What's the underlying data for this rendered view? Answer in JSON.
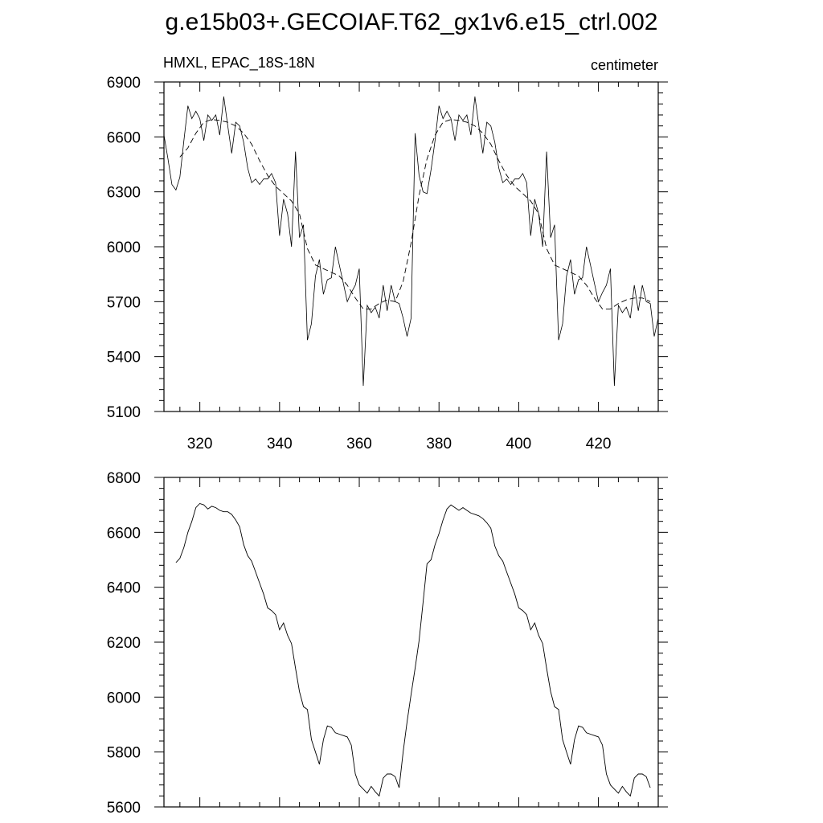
{
  "title": "g.e15b03+.GECOIAF.T62_gx1v6.e15_ctrl.002",
  "chart_data": [
    {
      "type": "line",
      "left_label": "HMXL, EPAC_18S-18N",
      "right_label": "centimeter",
      "xlim": [
        311,
        435
      ],
      "ylim": [
        5100,
        6900
      ],
      "xticks": [
        320,
        340,
        360,
        380,
        400,
        420
      ],
      "yticks": [
        5100,
        5400,
        5700,
        6000,
        6300,
        6600,
        6900
      ],
      "xtick_labels": [
        "320",
        "340",
        "360",
        "380",
        "400",
        "420"
      ],
      "ytick_labels": [
        "5100",
        "5400",
        "5700",
        "6000",
        "6300",
        "6600",
        "6900"
      ],
      "series": [
        {
          "style": "solid",
          "x": [
            311,
            312,
            313,
            314,
            315,
            316,
            317,
            318,
            319,
            320,
            321,
            322,
            323,
            324,
            325,
            326,
            327,
            328,
            329,
            330,
            331,
            332,
            333,
            334,
            335,
            336,
            337,
            338,
            339,
            340,
            341,
            342,
            343,
            344,
            345,
            346,
            347,
            348,
            349,
            350,
            351,
            352,
            353,
            354,
            355,
            356,
            357,
            358,
            359,
            360,
            361,
            362,
            363,
            364,
            365,
            366,
            367,
            368,
            369,
            370,
            371,
            372,
            373,
            374,
            375,
            376,
            377,
            378,
            379,
            380,
            381,
            382,
            383,
            384,
            385,
            386,
            387,
            388,
            389,
            390,
            391,
            392,
            393,
            394,
            395,
            396,
            397,
            398,
            399,
            400,
            401,
            402,
            403,
            404,
            405,
            406,
            407,
            408,
            409,
            410,
            411,
            412,
            413,
            414,
            415,
            416,
            417,
            418,
            419,
            420,
            421,
            422,
            423,
            424,
            425,
            426,
            427,
            428,
            429,
            430,
            431,
            432,
            433,
            434,
            435
          ],
          "y": [
            6610,
            6480,
            6340,
            6310,
            6380,
            6580,
            6770,
            6700,
            6740,
            6700,
            6580,
            6720,
            6690,
            6720,
            6610,
            6820,
            6660,
            6510,
            6680,
            6660,
            6570,
            6430,
            6350,
            6370,
            6340,
            6370,
            6370,
            6400,
            6350,
            6060,
            6260,
            6180,
            6000,
            6520,
            6050,
            6120,
            5490,
            5580,
            5840,
            5930,
            5740,
            5820,
            5830,
            6000,
            5900,
            5800,
            5700,
            5750,
            5790,
            5880,
            5240,
            5680,
            5640,
            5670,
            5610,
            5790,
            5650,
            5790,
            5700,
            5690,
            5610,
            5510,
            5610,
            6620,
            6390,
            6300,
            6290,
            6420,
            6580,
            6770,
            6700,
            6740,
            6700,
            6580,
            6720,
            6690,
            6720,
            6610,
            6820,
            6660,
            6510,
            6680,
            6660,
            6570,
            6430,
            6350,
            6370,
            6340,
            6370,
            6370,
            6400,
            6350,
            6060,
            6260,
            6180,
            6000,
            6520,
            6050,
            6120,
            5490,
            5580,
            5840,
            5930,
            5740,
            5820,
            5830,
            6000,
            5900,
            5800,
            5700,
            5750,
            5790,
            5880,
            5240,
            5680,
            5640,
            5670,
            5610,
            5790,
            5650,
            5790,
            5700,
            5690,
            5510,
            5610
          ]
        },
        {
          "style": "dashed",
          "x": [
            315,
            317,
            319,
            321,
            323,
            325,
            327,
            329,
            331,
            333,
            335,
            337,
            339,
            341,
            343,
            345,
            347,
            349,
            351,
            353,
            355,
            357,
            359,
            361,
            363,
            365,
            367,
            369,
            371,
            373,
            375,
            377,
            379,
            381,
            383,
            385,
            387,
            389,
            391,
            393,
            395,
            397,
            399,
            401,
            403,
            405,
            407,
            409,
            411,
            413,
            415,
            417,
            419,
            421,
            423,
            425,
            427,
            429,
            431,
            433
          ],
          "y": [
            6490,
            6540,
            6620,
            6680,
            6695,
            6690,
            6680,
            6660,
            6620,
            6560,
            6470,
            6390,
            6330,
            6290,
            6250,
            6180,
            5990,
            5900,
            5880,
            5860,
            5840,
            5790,
            5720,
            5660,
            5660,
            5690,
            5710,
            5700,
            5810,
            6020,
            6280,
            6480,
            6610,
            6680,
            6695,
            6690,
            6680,
            6660,
            6620,
            6560,
            6470,
            6390,
            6330,
            6290,
            6250,
            6180,
            5990,
            5900,
            5880,
            5860,
            5840,
            5790,
            5720,
            5660,
            5660,
            5690,
            5710,
            5720,
            5720,
            5700
          ]
        }
      ]
    },
    {
      "type": "line",
      "xlim": [
        311,
        435
      ],
      "ylim": [
        5600,
        6800
      ],
      "xticks": [
        320,
        340,
        360,
        380,
        400,
        420
      ],
      "yticks": [
        5600,
        5800,
        6000,
        6200,
        6400,
        6600,
        6800
      ],
      "ytick_labels": [
        "5600",
        "5800",
        "6000",
        "6200",
        "6400",
        "6600",
        "6800"
      ],
      "series": [
        {
          "style": "solid",
          "x": [
            314,
            315,
            316,
            317,
            318,
            319,
            320,
            321,
            322,
            323,
            324,
            325,
            326,
            327,
            328,
            329,
            330,
            331,
            332,
            333,
            334,
            335,
            336,
            337,
            338,
            339,
            340,
            341,
            342,
            343,
            344,
            345,
            346,
            347,
            348,
            349,
            350,
            351,
            352,
            353,
            354,
            355,
            356,
            357,
            358,
            359,
            360,
            361,
            362,
            363,
            364,
            365,
            366,
            367,
            368,
            369,
            370,
            371,
            372,
            373,
            374,
            375,
            376,
            377,
            378,
            379,
            380,
            381,
            382,
            383,
            384,
            385,
            386,
            387,
            388,
            389,
            390,
            391,
            392,
            393,
            394,
            395,
            396,
            397,
            398,
            399,
            400,
            401,
            402,
            403,
            404,
            405,
            406,
            407,
            408,
            409,
            410,
            411,
            412,
            413,
            414,
            415,
            416,
            417,
            418,
            419,
            420,
            421,
            422,
            423,
            424,
            425,
            426,
            427,
            428,
            429,
            430,
            431,
            432,
            433
          ],
          "y": [
            6490,
            6505,
            6545,
            6600,
            6640,
            6690,
            6705,
            6700,
            6685,
            6695,
            6690,
            6680,
            6675,
            6675,
            6665,
            6645,
            6620,
            6555,
            6515,
            6495,
            6455,
            6415,
            6375,
            6325,
            6315,
            6300,
            6245,
            6270,
            6225,
            6195,
            6105,
            6020,
            5965,
            5955,
            5845,
            5800,
            5755,
            5845,
            5895,
            5890,
            5870,
            5865,
            5860,
            5855,
            5825,
            5720,
            5680,
            5665,
            5650,
            5675,
            5655,
            5640,
            5705,
            5720,
            5720,
            5710,
            5670,
            5800,
            5910,
            6010,
            6105,
            6205,
            6345,
            6485,
            6500,
            6555,
            6595,
            6645,
            6685,
            6700,
            6690,
            6680,
            6690,
            6680,
            6670,
            6665,
            6660,
            6650,
            6635,
            6615,
            6550,
            6515,
            6495,
            6455,
            6415,
            6375,
            6325,
            6315,
            6300,
            6245,
            6270,
            6225,
            6195,
            6105,
            6020,
            5965,
            5955,
            5845,
            5800,
            5755,
            5845,
            5895,
            5890,
            5870,
            5865,
            5860,
            5855,
            5825,
            5720,
            5680,
            5665,
            5650,
            5675,
            5655,
            5640,
            5705,
            5720,
            5720,
            5710,
            5670
          ]
        }
      ]
    }
  ]
}
